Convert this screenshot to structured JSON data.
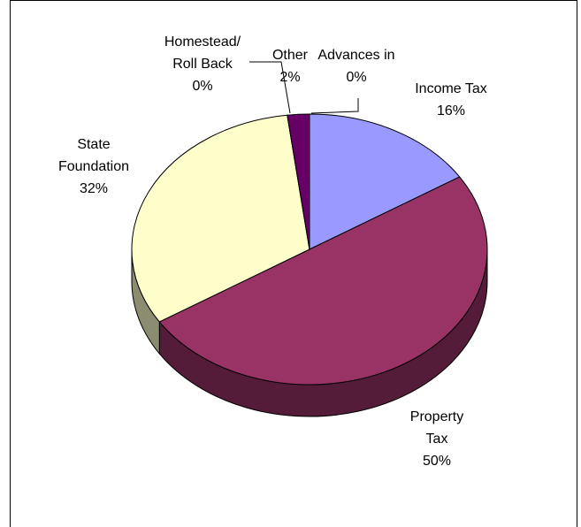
{
  "chart_data": {
    "type": "pie",
    "slices": [
      {
        "label_lines": [
          "Income Tax",
          "16%"
        ],
        "value": 16,
        "color": "#9999ff"
      },
      {
        "label_lines": [
          "Property",
          "Tax",
          "50%"
        ],
        "value": 50,
        "color": "#993366"
      },
      {
        "label_lines": [
          "State",
          "Foundation",
          "32%"
        ],
        "value": 32,
        "color": "#ffffcc"
      },
      {
        "label_lines": [
          "Homestead/",
          "Roll Back",
          "0%"
        ],
        "value": 0,
        "color": "#ccffff"
      },
      {
        "label_lines": [
          "Other",
          "2%"
        ],
        "value": 2,
        "color": "#660066"
      },
      {
        "label_lines": [
          "Advances in",
          "0%"
        ],
        "value": 0,
        "color": "#ff8080"
      }
    ],
    "three_d": true,
    "legend": "none"
  }
}
